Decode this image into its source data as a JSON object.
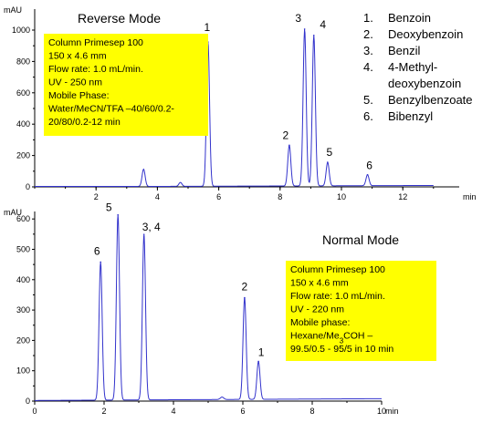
{
  "chart_data": [
    {
      "type": "line",
      "title": "Reverse Mode",
      "ylabel": "mAU",
      "xlabel": "min",
      "xlim": [
        0,
        13
      ],
      "ylim": [
        0,
        1000
      ],
      "xticks": [
        "2",
        "4",
        "6",
        "8",
        "10",
        "12"
      ],
      "yticks": [
        "0",
        "200",
        "400",
        "600",
        "800",
        "1000"
      ],
      "peaks": [
        {
          "label": "1",
          "x": 5.65,
          "y": 920
        },
        {
          "label": "2",
          "x": 8.3,
          "y": 260
        },
        {
          "label": "3",
          "x": 8.8,
          "y": 1000
        },
        {
          "label": "4",
          "x": 9.1,
          "y": 960
        },
        {
          "label": "5",
          "x": 9.55,
          "y": 150
        },
        {
          "label": "6",
          "x": 10.85,
          "y": 70
        }
      ],
      "minor_peaks": [
        {
          "x": 3.55,
          "y": 110
        },
        {
          "x": 4.75,
          "y": 25
        }
      ],
      "legend": [
        {
          "num": "1.",
          "name": "Benzoin"
        },
        {
          "num": "2.",
          "name": "Deoxybenzoin"
        },
        {
          "num": "3.",
          "name": "Benzil"
        },
        {
          "num": "4.",
          "name": "4-Methyl-"
        },
        {
          "num": "",
          "name": "deoxybenzoin"
        },
        {
          "num": "5.",
          "name": "Benzylbenzoate"
        },
        {
          "num": "6.",
          "name": "Bibenzyl"
        }
      ],
      "conditions": [
        "Column Primesep 100",
        "150 x 4.6 mm",
        "Flow rate: 1.0 mL/min.",
        "UV - 250 nm",
        "Mobile Phase:",
        "Water/MeCN/TFA –40/60/0.2-",
        "20/80/0.2-12 min"
      ],
      "line_color": "#3333cc",
      "box_color": "#ffff00"
    },
    {
      "type": "line",
      "title": "Normal Mode",
      "ylabel": "mAU",
      "xlabel": "min",
      "xlim": [
        0,
        10
      ],
      "ylim": [
        0,
        600
      ],
      "xticks": [
        "0",
        "2",
        "4",
        "6",
        "8",
        "10"
      ],
      "yticks": [
        "0",
        "100",
        "200",
        "300",
        "400",
        "500",
        "600"
      ],
      "peaks": [
        {
          "label": "6",
          "x": 1.9,
          "y": 455
        },
        {
          "label": "5",
          "x": 2.4,
          "y": 610
        },
        {
          "label": "3, 4",
          "x": 3.15,
          "y": 545
        },
        {
          "label": "2",
          "x": 6.05,
          "y": 335
        },
        {
          "label": "1",
          "x": 6.45,
          "y": 125
        }
      ],
      "minor_peaks": [
        {
          "x": 5.4,
          "y": 8
        }
      ],
      "conditions": [
        "Column  Primesep 100",
        "150 x 4.6 mm",
        "Flow rate: 1.0 mL/min.",
        " UV - 220 nm",
        "Mobile phase:",
        "Hexane/Me3COH –",
        "99.5/0.5 - 95/5 in 10 min"
      ],
      "line_color": "#3333cc",
      "box_color": "#ffff00"
    }
  ]
}
